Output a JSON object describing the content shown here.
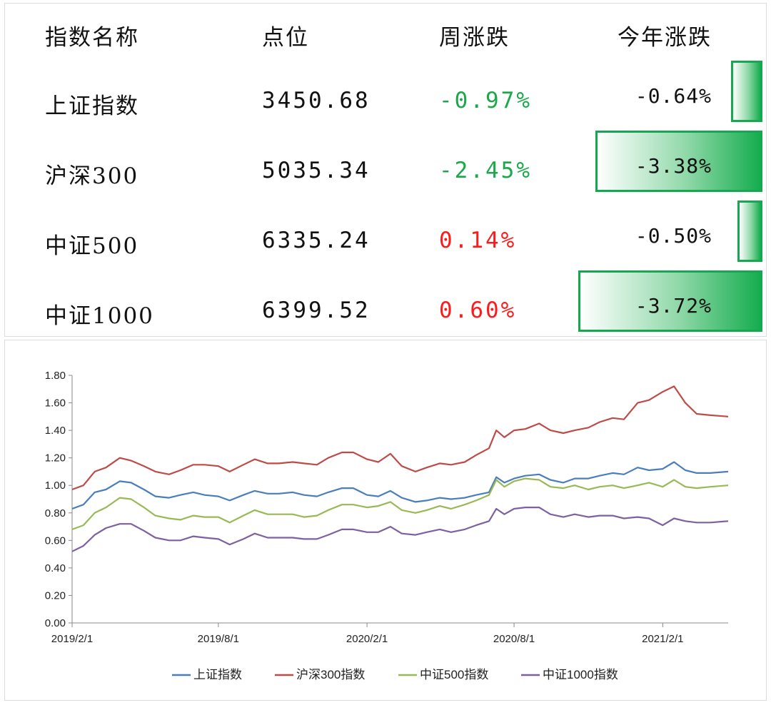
{
  "table": {
    "headers": [
      "指数名称",
      "点位",
      "周涨跌",
      "今年涨跌"
    ],
    "rows": [
      {
        "name": "上证指数",
        "value": "3450.68",
        "week": "-0.97%",
        "ytd": "-0.64%",
        "ytd_num": -0.64
      },
      {
        "name": "沪深300",
        "value": "5035.34",
        "week": "-2.45%",
        "ytd": "-3.38%",
        "ytd_num": -3.38
      },
      {
        "name": "中证500",
        "value": "6335.24",
        "week": "0.14%",
        "ytd": "-0.50%",
        "ytd_num": -0.5
      },
      {
        "name": "中证1000",
        "value": "6399.52",
        "week": "0.60%",
        "ytd": "-3.72%",
        "ytd_num": -3.72
      }
    ]
  },
  "colors": {
    "up": "#ff1a1a",
    "down": "#1aa84a",
    "bar": "#16a850"
  },
  "chart_data": {
    "type": "line",
    "title": "",
    "xlabel": "",
    "ylabel": "",
    "ylim": [
      0,
      1.8
    ],
    "yticks": [
      "0.00",
      "0.20",
      "0.40",
      "0.60",
      "0.80",
      "1.00",
      "1.20",
      "1.40",
      "1.60",
      "1.80"
    ],
    "xlim": [
      "2019-02-01",
      "2021-04-23"
    ],
    "xticks": [
      "2019/2/1",
      "2019/8/1",
      "2020/2/1",
      "2020/8/1",
      "2021/2/1"
    ],
    "grid": false,
    "legend": "bottom",
    "x": [
      "2019-02-01",
      "2019-02-15",
      "2019-03-01",
      "2019-03-15",
      "2019-04-01",
      "2019-04-15",
      "2019-05-01",
      "2019-05-15",
      "2019-06-01",
      "2019-06-15",
      "2019-07-01",
      "2019-07-15",
      "2019-08-01",
      "2019-08-15",
      "2019-09-01",
      "2019-09-15",
      "2019-10-01",
      "2019-10-15",
      "2019-11-01",
      "2019-11-15",
      "2019-12-01",
      "2019-12-15",
      "2020-01-01",
      "2020-01-15",
      "2020-02-01",
      "2020-02-15",
      "2020-03-01",
      "2020-03-15",
      "2020-04-01",
      "2020-04-15",
      "2020-05-01",
      "2020-05-15",
      "2020-06-01",
      "2020-06-15",
      "2020-07-01",
      "2020-07-10",
      "2020-07-20",
      "2020-08-01",
      "2020-08-15",
      "2020-09-01",
      "2020-09-15",
      "2020-10-01",
      "2020-10-15",
      "2020-11-01",
      "2020-11-15",
      "2020-12-01",
      "2020-12-15",
      "2021-01-01",
      "2021-01-15",
      "2021-02-01",
      "2021-02-15",
      "2021-03-01",
      "2021-03-15",
      "2021-04-01",
      "2021-04-23"
    ],
    "series": [
      {
        "name": "上证指数",
        "color": "#4a7ebb",
        "values": [
          0.83,
          0.86,
          0.95,
          0.97,
          1.03,
          1.02,
          0.97,
          0.92,
          0.91,
          0.93,
          0.95,
          0.93,
          0.92,
          0.89,
          0.93,
          0.96,
          0.94,
          0.94,
          0.95,
          0.93,
          0.92,
          0.95,
          0.98,
          0.98,
          0.93,
          0.92,
          0.96,
          0.91,
          0.88,
          0.89,
          0.91,
          0.9,
          0.91,
          0.93,
          0.95,
          1.06,
          1.02,
          1.05,
          1.07,
          1.08,
          1.04,
          1.02,
          1.05,
          1.05,
          1.07,
          1.09,
          1.08,
          1.13,
          1.11,
          1.12,
          1.17,
          1.11,
          1.09,
          1.09,
          1.1
        ]
      },
      {
        "name": "沪深300指数",
        "color": "#be4b48",
        "values": [
          0.97,
          1.0,
          1.1,
          1.13,
          1.2,
          1.18,
          1.14,
          1.1,
          1.08,
          1.11,
          1.15,
          1.15,
          1.14,
          1.1,
          1.15,
          1.19,
          1.16,
          1.16,
          1.17,
          1.16,
          1.15,
          1.2,
          1.24,
          1.24,
          1.19,
          1.17,
          1.23,
          1.14,
          1.1,
          1.13,
          1.16,
          1.15,
          1.17,
          1.22,
          1.27,
          1.4,
          1.35,
          1.4,
          1.41,
          1.45,
          1.4,
          1.38,
          1.4,
          1.42,
          1.46,
          1.49,
          1.48,
          1.6,
          1.62,
          1.68,
          1.72,
          1.6,
          1.52,
          1.51,
          1.5
        ]
      },
      {
        "name": "中证500指数",
        "color": "#98b954",
        "values": [
          0.68,
          0.71,
          0.8,
          0.84,
          0.91,
          0.9,
          0.84,
          0.78,
          0.76,
          0.75,
          0.78,
          0.77,
          0.77,
          0.73,
          0.78,
          0.82,
          0.79,
          0.79,
          0.79,
          0.77,
          0.78,
          0.82,
          0.86,
          0.86,
          0.84,
          0.85,
          0.88,
          0.82,
          0.8,
          0.82,
          0.85,
          0.83,
          0.86,
          0.89,
          0.93,
          1.04,
          0.99,
          1.03,
          1.05,
          1.04,
          0.99,
          0.98,
          1.0,
          0.97,
          0.99,
          1.0,
          0.98,
          1.0,
          1.02,
          0.99,
          1.04,
          0.99,
          0.98,
          0.99,
          1.0
        ]
      },
      {
        "name": "中证1000指数",
        "color": "#7d60a0",
        "values": [
          0.52,
          0.56,
          0.64,
          0.69,
          0.72,
          0.72,
          0.67,
          0.62,
          0.6,
          0.6,
          0.63,
          0.62,
          0.61,
          0.57,
          0.61,
          0.65,
          0.62,
          0.62,
          0.62,
          0.61,
          0.61,
          0.64,
          0.68,
          0.68,
          0.66,
          0.66,
          0.7,
          0.65,
          0.64,
          0.66,
          0.68,
          0.66,
          0.68,
          0.71,
          0.74,
          0.83,
          0.79,
          0.83,
          0.84,
          0.84,
          0.79,
          0.77,
          0.79,
          0.77,
          0.78,
          0.78,
          0.76,
          0.77,
          0.76,
          0.71,
          0.76,
          0.74,
          0.73,
          0.73,
          0.74
        ]
      }
    ]
  }
}
